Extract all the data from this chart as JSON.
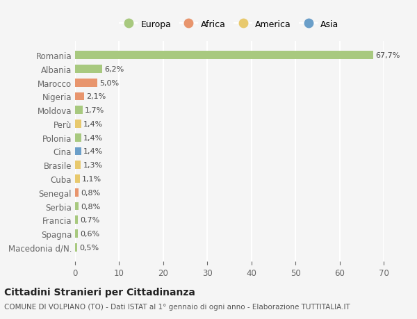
{
  "countries": [
    "Macedonia d/N.",
    "Spagna",
    "Francia",
    "Serbia",
    "Senegal",
    "Cuba",
    "Brasile",
    "Cina",
    "Polonia",
    "Perù",
    "Moldova",
    "Nigeria",
    "Marocco",
    "Albania",
    "Romania"
  ],
  "values": [
    0.5,
    0.6,
    0.7,
    0.8,
    0.8,
    1.1,
    1.3,
    1.4,
    1.4,
    1.4,
    1.7,
    2.1,
    5.0,
    6.2,
    67.7
  ],
  "labels": [
    "0,5%",
    "0,6%",
    "0,7%",
    "0,8%",
    "0,8%",
    "1,1%",
    "1,3%",
    "1,4%",
    "1,4%",
    "1,4%",
    "1,7%",
    "2,1%",
    "5,0%",
    "6,2%",
    "67,7%"
  ],
  "continent": [
    "Europa",
    "Europa",
    "Europa",
    "Europa",
    "Africa",
    "America",
    "America",
    "Asia",
    "Europa",
    "America",
    "Europa",
    "Africa",
    "Africa",
    "Europa",
    "Europa"
  ],
  "continent_colors": {
    "Europa": "#a8c97f",
    "Africa": "#e8956d",
    "America": "#e8c96d",
    "Asia": "#6b9fc9"
  },
  "legend_order": [
    "Europa",
    "Africa",
    "America",
    "Asia"
  ],
  "bg_color": "#f5f5f5",
  "grid_color": "#ffffff",
  "title": "Cittadini Stranieri per Cittadinanza",
  "subtitle": "COMUNE DI VOLPIANO (TO) - Dati ISTAT al 1° gennaio di ogni anno - Elaborazione TUTTITALIA.IT",
  "xlim": [
    0,
    70
  ],
  "xticks": [
    0,
    10,
    20,
    30,
    40,
    50,
    60,
    70
  ]
}
